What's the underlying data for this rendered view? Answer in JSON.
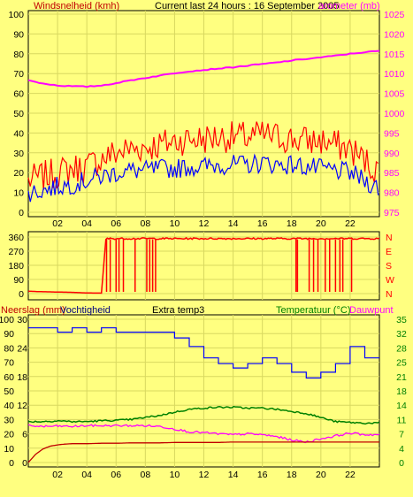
{
  "header": {
    "left_label": "Windsnelheid (kmh)",
    "center_label": "Current last 24 hours : 16 September 2005",
    "right_label": "arometer (mb)"
  },
  "colors": {
    "background": "#FFFF80",
    "plot_bg": "#FFFF80",
    "grid": "#D8D860",
    "axis_text": "#000000",
    "wind_avg": "#0000FF",
    "wind_gust": "#FF0000",
    "barometer": "#FF00FF",
    "direction": "#FF0000",
    "humidity": "#0000FF",
    "rain": "#FF00FF",
    "extra": "#C00000",
    "temperature": "#008000",
    "dewpoint": "#FF00FF"
  },
  "panel2": {
    "right_labels": [
      "N",
      "W",
      "S",
      "E",
      "N"
    ]
  },
  "panel3": {
    "label_rain": "Neerslag (mm)",
    "label_humidity": "Vochtigheid",
    "label_extra": "Extra temp3",
    "label_temp": "Temperatuur (°C)",
    "label_dew": "Dauwpunt"
  },
  "chart_data": [
    {
      "type": "line",
      "title": "Current last 24 hours : 16 September 2005",
      "x_ticks": [
        "02",
        "04",
        "06",
        "08",
        "10",
        "12",
        "14",
        "16",
        "18",
        "20",
        "22"
      ],
      "ylabel_left": "Windsnelheid (kmh)",
      "ylabel_right": "arometer (mb)",
      "ylim_left": [
        0,
        100
      ],
      "ylim_right": [
        975,
        1025
      ],
      "yticks_left": [
        "0",
        "10",
        "20",
        "30",
        "40",
        "50",
        "60",
        "70",
        "80",
        "90",
        "100"
      ],
      "yticks_right": [
        "975",
        "980",
        "985",
        "990",
        "995",
        "1000",
        "1005",
        "1010",
        "1015",
        "1020",
        "1025"
      ],
      "grid": true,
      "series": [
        {
          "name": "Windsnelheid (kmh) gust",
          "axis": "left",
          "x": [
            0,
            1,
            2,
            3,
            4,
            5,
            6,
            7,
            8,
            9,
            10,
            11,
            12,
            13,
            14,
            15,
            16,
            17,
            18,
            19,
            20,
            21,
            22,
            23,
            24
          ],
          "values": [
            16,
            18,
            20,
            22,
            23,
            27,
            30,
            32,
            33,
            34,
            36,
            37,
            37,
            38,
            38,
            38,
            39,
            38,
            37,
            36,
            36,
            34,
            32,
            26,
            20
          ]
        },
        {
          "name": "Windsnelheid (kmh) avg",
          "axis": "left",
          "x": [
            0,
            1,
            2,
            3,
            4,
            5,
            6,
            7,
            8,
            9,
            10,
            11,
            12,
            13,
            14,
            15,
            16,
            17,
            18,
            19,
            20,
            21,
            22,
            23,
            24
          ],
          "values": [
            10,
            11,
            13,
            14,
            16,
            18,
            20,
            21,
            21,
            22,
            22,
            23,
            23,
            24,
            24,
            24,
            25,
            24,
            24,
            23,
            22,
            21,
            20,
            16,
            12
          ]
        },
        {
          "name": "arometer (mb)",
          "axis": "right",
          "x": [
            0,
            1,
            2,
            3,
            4,
            5,
            6,
            7,
            8,
            9,
            10,
            11,
            12,
            13,
            14,
            15,
            16,
            17,
            18,
            19,
            20,
            21,
            22,
            23,
            24
          ],
          "values": [
            1008.3,
            1007.5,
            1007.0,
            1006.8,
            1006.7,
            1007.0,
            1007.6,
            1008.3,
            1008.9,
            1009.5,
            1010.1,
            1010.6,
            1010.9,
            1011.3,
            1011.6,
            1012.0,
            1012.4,
            1012.8,
            1013.3,
            1013.7,
            1014.1,
            1014.5,
            1015.0,
            1015.4,
            1015.7
          ]
        }
      ]
    },
    {
      "type": "line",
      "x_ticks": [],
      "ylim": [
        0,
        360
      ],
      "yticks_left": [
        "0",
        "90",
        "180",
        "270",
        "360"
      ],
      "yticks_right": [
        "N",
        "W",
        "S",
        "E",
        "N"
      ],
      "grid": true,
      "series": [
        {
          "name": "Wind direction",
          "x": [
            0,
            1,
            2,
            3,
            4,
            5,
            5.3,
            5.6,
            6,
            7,
            8,
            9,
            10,
            11,
            12,
            13,
            14,
            15,
            16,
            17,
            18,
            19,
            20,
            21,
            22,
            23,
            24
          ],
          "values": [
            15,
            12,
            10,
            8,
            4,
            3,
            345,
            350,
            352,
            352,
            350,
            350,
            352,
            352,
            350,
            350,
            352,
            350,
            352,
            350,
            350,
            352,
            352,
            350,
            350,
            350,
            352
          ]
        }
      ]
    },
    {
      "type": "line",
      "x_ticks": [
        "02",
        "04",
        "06",
        "08",
        "10",
        "12",
        "14",
        "16",
        "18",
        "20",
        "22"
      ],
      "ylim_left": [
        0,
        100
      ],
      "yticks_left": [
        "0",
        "10",
        "20",
        "30",
        "40",
        "50",
        "60",
        "70",
        "80",
        "90",
        "100"
      ],
      "yticks_left_inner": [
        "0",
        "6",
        "12",
        "18",
        "24",
        "30"
      ],
      "ylim_right": [
        0,
        35
      ],
      "yticks_right": [
        "0",
        "4",
        "7",
        "11",
        "14",
        "18",
        "21",
        "25",
        "28",
        "32",
        "35"
      ],
      "grid": true,
      "series": [
        {
          "name": "Vochtigheid",
          "axis": "left",
          "x": [
            0,
            1,
            2,
            3,
            4,
            5,
            6,
            7,
            8,
            9,
            10,
            11,
            12,
            13,
            14,
            15,
            16,
            17,
            18,
            19,
            20,
            21,
            22,
            23,
            24
          ],
          "values": [
            94,
            94,
            91,
            94,
            91,
            94,
            91,
            91,
            91,
            91,
            87,
            81,
            73,
            69,
            66,
            69,
            73,
            69,
            63,
            59,
            63,
            69,
            81,
            73,
            73
          ]
        },
        {
          "name": "Neerslag (mm)",
          "axis": "left_inner",
          "x": [
            0,
            1,
            2,
            3,
            4,
            5,
            6,
            7,
            8,
            9,
            10,
            11,
            12,
            13,
            14,
            15,
            16,
            17,
            18,
            19,
            20,
            21,
            22,
            23,
            24
          ],
          "values": [
            6.8,
            6.8,
            6.8,
            6.8,
            6.8,
            6.6,
            6.6,
            6.6,
            6.6,
            6.4,
            6.2,
            5.9,
            6.2,
            5.7,
            5.9,
            6.2,
            5.7,
            4.3,
            4.0,
            3.4,
            3.7,
            3.7,
            4.3,
            4.7,
            4.7
          ]
        },
        {
          "name": "Temperatuur (°C)",
          "axis": "right",
          "x": [
            0,
            1,
            2,
            3,
            4,
            5,
            6,
            7,
            8,
            9,
            10,
            11,
            12,
            13,
            14,
            15,
            16,
            17,
            18,
            19,
            20,
            21,
            22,
            23,
            24
          ],
          "values": [
            10.0,
            10.0,
            10.2,
            10.0,
            10.0,
            10.2,
            10.3,
            10.5,
            11.0,
            11.5,
            12.3,
            13.0,
            13.3,
            13.5,
            13.5,
            13.3,
            13.3,
            13.0,
            12.5,
            12.0,
            11.0,
            10.0,
            9.8,
            9.6,
            9.7
          ]
        },
        {
          "name": "Dauwpunt",
          "axis": "right",
          "x": [
            0,
            1,
            2,
            3,
            4,
            5,
            6,
            7,
            8,
            9,
            10,
            11,
            12,
            13,
            14,
            15,
            16,
            17,
            18,
            19,
            20,
            21,
            22,
            23,
            24
          ],
          "values": [
            9.0,
            8.8,
            8.9,
            8.8,
            9.0,
            9.0,
            9.0,
            9.0,
            9.0,
            8.8,
            8.2,
            7.5,
            7.3,
            7.0,
            6.8,
            7.0,
            6.8,
            6.3,
            5.5,
            5.0,
            5.8,
            6.5,
            7.2,
            6.8,
            6.8
          ]
        },
        {
          "name": "Extra temp3",
          "axis": "right",
          "x": [
            0,
            0.5,
            1,
            1.5,
            2,
            2.5,
            3,
            4,
            5,
            6,
            7,
            8,
            9,
            10,
            11,
            12,
            13,
            14,
            15,
            16,
            17,
            18,
            19,
            20,
            21,
            22,
            23,
            24
          ],
          "values": [
            0,
            2,
            3.3,
            4.0,
            4.3,
            4.5,
            4.6,
            4.6,
            4.7,
            4.7,
            4.8,
            4.8,
            4.8,
            4.9,
            4.9,
            4.9,
            4.9,
            5.0,
            5.0,
            5.0,
            5.0,
            5.0,
            5.0,
            5.0,
            5.0,
            5.0,
            5.0,
            5.0
          ]
        }
      ]
    }
  ]
}
